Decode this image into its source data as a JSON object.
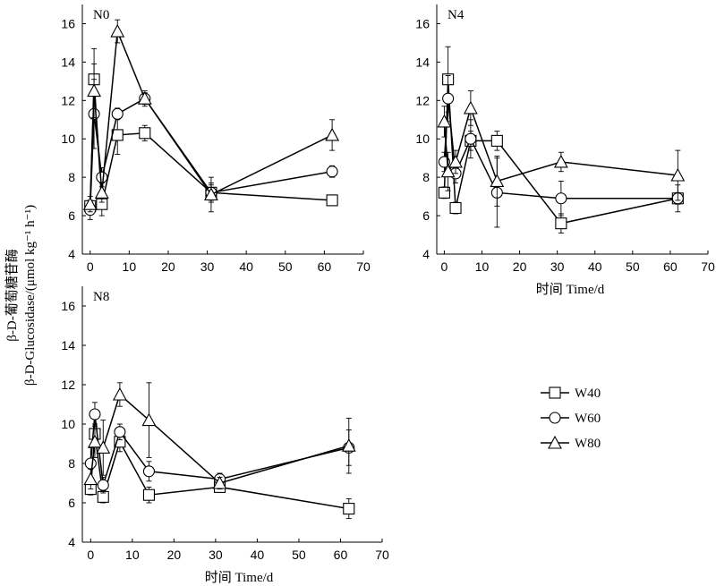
{
  "chart_data": [
    {
      "type": "line",
      "panel_label": "N0",
      "xlim": [
        -2,
        70
      ],
      "ylim": [
        4,
        17
      ],
      "x_ticks": [
        0,
        10,
        20,
        30,
        40,
        50,
        60,
        70
      ],
      "y_ticks": [
        4,
        6,
        8,
        10,
        12,
        14,
        16
      ],
      "x": [
        0,
        1,
        3,
        7,
        14,
        31,
        62
      ],
      "series": [
        {
          "name": "W40",
          "marker": "square",
          "values": [
            6.5,
            13.1,
            6.6,
            10.2,
            10.3,
            7.2,
            6.8
          ],
          "errors": [
            0.3,
            1.6,
            0.6,
            1.0,
            0.4,
            0.4,
            0.2
          ]
        },
        {
          "name": "W60",
          "marker": "circle",
          "values": [
            6.3,
            11.3,
            8.0,
            11.3,
            12.1,
            7.2,
            8.3
          ],
          "errors": [
            0.5,
            1.8,
            0.5,
            0.3,
            0.3,
            0.5,
            0.3
          ]
        },
        {
          "name": "W80",
          "marker": "triangle",
          "values": [
            6.6,
            12.5,
            7.2,
            15.6,
            12.1,
            7.1,
            10.2
          ],
          "errors": [
            0.4,
            1.4,
            0.5,
            0.6,
            0.4,
            0.9,
            0.8
          ]
        }
      ]
    },
    {
      "type": "line",
      "panel_label": "N4",
      "xlim": [
        -2,
        70
      ],
      "ylim": [
        4,
        17
      ],
      "x_ticks": [
        0,
        10,
        20,
        30,
        40,
        50,
        60,
        70
      ],
      "y_ticks": [
        4,
        6,
        8,
        10,
        12,
        14,
        16
      ],
      "x": [
        0,
        1,
        3,
        7,
        14,
        31,
        62
      ],
      "series": [
        {
          "name": "W40",
          "marker": "square",
          "values": [
            7.2,
            13.1,
            6.4,
            9.9,
            9.9,
            5.6,
            6.9
          ],
          "errors": [
            0.3,
            1.7,
            0.3,
            0.5,
            0.5,
            0.5,
            0.3
          ]
        },
        {
          "name": "W60",
          "marker": "circle",
          "values": [
            8.8,
            12.1,
            8.2,
            10.0,
            7.2,
            6.9,
            6.9
          ],
          "errors": [
            0.5,
            1.2,
            0.5,
            1.0,
            1.8,
            0.9,
            0.7
          ]
        },
        {
          "name": "W80",
          "marker": "triangle",
          "values": [
            10.9,
            8.3,
            8.8,
            11.6,
            7.8,
            8.8,
            8.1
          ],
          "errors": [
            0.8,
            1.0,
            0.6,
            0.9,
            1.3,
            0.5,
            1.3
          ]
        }
      ]
    },
    {
      "type": "line",
      "panel_label": "N8",
      "xlim": [
        -2,
        70
      ],
      "ylim": [
        4,
        17
      ],
      "x_ticks": [
        0,
        10,
        20,
        30,
        40,
        50,
        60,
        70
      ],
      "y_ticks": [
        4,
        6,
        8,
        10,
        12,
        14,
        16
      ],
      "x": [
        0,
        1,
        3,
        7,
        14,
        31,
        62
      ],
      "xlabel": "时间 Time/d",
      "series": [
        {
          "name": "W40",
          "marker": "square",
          "values": [
            6.7,
            9.5,
            6.3,
            9.1,
            6.4,
            6.8,
            5.7
          ],
          "errors": [
            0.3,
            0.5,
            0.3,
            0.5,
            0.4,
            0.2,
            0.5
          ]
        },
        {
          "name": "W60",
          "marker": "circle",
          "values": [
            8.0,
            10.5,
            6.9,
            9.6,
            7.6,
            7.2,
            8.8
          ],
          "errors": [
            0.8,
            0.6,
            0.4,
            0.4,
            0.5,
            0.3,
            0.9
          ]
        },
        {
          "name": "W80",
          "marker": "triangle",
          "values": [
            7.2,
            9.1,
            8.8,
            11.5,
            10.2,
            7.0,
            8.9
          ],
          "errors": [
            0.5,
            0.8,
            1.4,
            0.6,
            1.9,
            0.3,
            1.4
          ]
        }
      ]
    }
  ],
  "ylabel_line1": "β-D-葡萄糖苷酶",
  "ylabel_line2": "β-D-Glucosidase/(μmol kg⁻¹ h⁻¹)",
  "xlabel_N4": "时间 Time/d",
  "legend": [
    "W40",
    "W60",
    "W80"
  ]
}
